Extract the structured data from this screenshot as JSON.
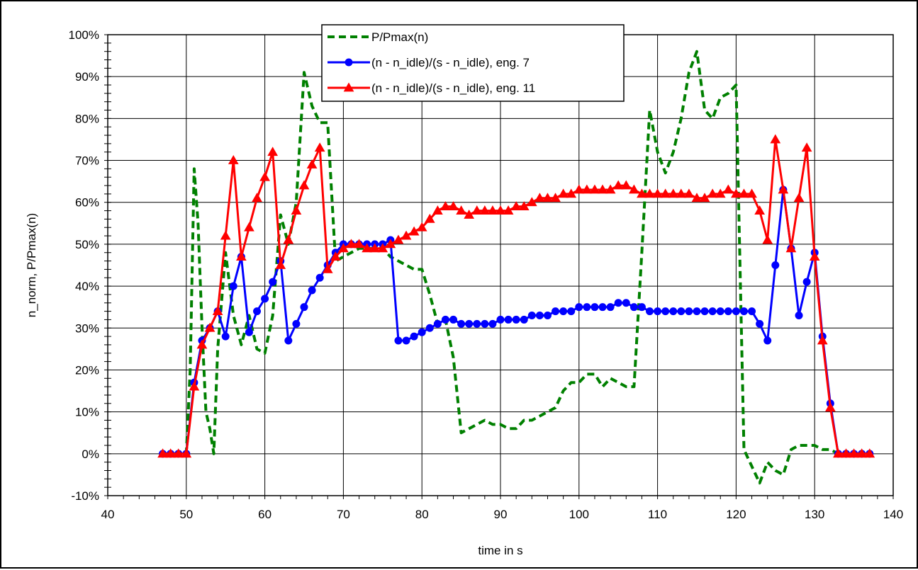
{
  "chart_data": {
    "type": "line",
    "title": "",
    "xlabel": "time in s",
    "ylabel": "n_norm, P/Pmax(n)",
    "xlim": [
      40,
      140
    ],
    "ylim": [
      -10,
      100
    ],
    "x_ticks": [
      40,
      50,
      60,
      70,
      80,
      90,
      100,
      110,
      120,
      130,
      140
    ],
    "x_tick_labels": [
      "40",
      "50",
      "60",
      "70",
      "80",
      "90",
      "100",
      "110",
      "120",
      "130",
      "140"
    ],
    "y_ticks": [
      -10,
      0,
      10,
      20,
      30,
      40,
      50,
      60,
      70,
      80,
      90,
      100
    ],
    "y_tick_labels": [
      "-10%",
      "0%",
      "10%",
      "20%",
      "30%",
      "40%",
      "50%",
      "60%",
      "70%",
      "80%",
      "90%",
      "100%"
    ],
    "grid": true,
    "legend_position": "top-center",
    "series": [
      {
        "name": "P/Pmax(n)",
        "color": "#008000",
        "style": "dashed",
        "marker": "none",
        "x": [
          47,
          48,
          49,
          50,
          50.5,
          51,
          51.5,
          52,
          52.5,
          53,
          53.5,
          54,
          55,
          56,
          57,
          58,
          59,
          60,
          61,
          62,
          63,
          64,
          65,
          66,
          67,
          68,
          69,
          70,
          71,
          72,
          73,
          74,
          75,
          76,
          77,
          78,
          79,
          80,
          81,
          82,
          83,
          84,
          85,
          86,
          87,
          88,
          89,
          90,
          91,
          92,
          93,
          94,
          95,
          96,
          97,
          98,
          99,
          100,
          101,
          102,
          103,
          104,
          105,
          106,
          107,
          108,
          109,
          110,
          111,
          112,
          113,
          114,
          115,
          116,
          117,
          118,
          119,
          120,
          121,
          122,
          123,
          124,
          125,
          126,
          127,
          128,
          129,
          130,
          131,
          132,
          133,
          134,
          135,
          136,
          137
        ],
        "y": [
          0,
          0,
          0,
          0,
          20,
          68,
          55,
          30,
          10,
          6,
          0,
          25,
          48,
          33,
          26,
          33,
          25,
          24,
          33,
          57,
          50,
          60,
          91,
          83,
          79,
          79,
          46,
          47,
          48,
          49,
          49,
          49,
          49,
          47,
          46,
          45,
          44,
          44,
          38,
          31,
          32,
          23,
          5,
          6,
          7,
          8,
          7,
          7,
          6,
          6,
          8,
          8,
          9,
          10,
          11,
          15,
          17,
          17,
          19,
          19,
          16,
          18,
          17,
          16,
          16,
          48,
          82,
          72,
          67,
          72,
          80,
          91,
          96,
          82,
          80,
          85,
          86,
          88,
          1,
          -3,
          -7,
          -2,
          -4,
          -5,
          1,
          2,
          2,
          2,
          1,
          1,
          0,
          0,
          0,
          0,
          0
        ]
      },
      {
        "name": "(n - n_idle)/(s - n_idle), eng. 7",
        "color": "#0000ff",
        "style": "solid",
        "marker": "circle",
        "x": [
          47,
          48,
          49,
          50,
          51,
          52,
          53,
          54,
          55,
          56,
          57,
          58,
          59,
          60,
          61,
          62,
          63,
          64,
          65,
          66,
          67,
          68,
          69,
          70,
          71,
          72,
          73,
          74,
          75,
          76,
          77,
          78,
          79,
          80,
          81,
          82,
          83,
          84,
          85,
          86,
          87,
          88,
          89,
          90,
          91,
          92,
          93,
          94,
          95,
          96,
          97,
          98,
          99,
          100,
          101,
          102,
          103,
          104,
          105,
          106,
          107,
          108,
          109,
          110,
          111,
          112,
          113,
          114,
          115,
          116,
          117,
          118,
          119,
          120,
          121,
          122,
          123,
          124,
          125,
          126,
          127,
          128,
          129,
          130,
          131,
          132,
          133,
          134,
          135,
          136,
          137
        ],
        "y": [
          0,
          0,
          0,
          0,
          17,
          27,
          30,
          34,
          28,
          40,
          47,
          29,
          34,
          37,
          41,
          46,
          27,
          31,
          35,
          39,
          42,
          45,
          48,
          50,
          50,
          50,
          50,
          50,
          50,
          51,
          27,
          27,
          28,
          29,
          30,
          31,
          32,
          32,
          31,
          31,
          31,
          31,
          31,
          32,
          32,
          32,
          32,
          33,
          33,
          33,
          34,
          34,
          34,
          35,
          35,
          35,
          35,
          35,
          36,
          36,
          35,
          35,
          34,
          34,
          34,
          34,
          34,
          34,
          34,
          34,
          34,
          34,
          34,
          34,
          34,
          34,
          31,
          27,
          45,
          63,
          49,
          33,
          41,
          48,
          28,
          12,
          0,
          0,
          0,
          0,
          0
        ]
      },
      {
        "name": "(n - n_idle)/(s - n_idle), eng. 11",
        "color": "#ff0000",
        "style": "solid",
        "marker": "triangle",
        "x": [
          47,
          48,
          49,
          50,
          51,
          52,
          53,
          54,
          55,
          56,
          57,
          58,
          59,
          60,
          61,
          62,
          63,
          64,
          65,
          66,
          67,
          68,
          69,
          70,
          71,
          72,
          73,
          74,
          75,
          76,
          77,
          78,
          79,
          80,
          81,
          82,
          83,
          84,
          85,
          86,
          87,
          88,
          89,
          90,
          91,
          92,
          93,
          94,
          95,
          96,
          97,
          98,
          99,
          100,
          101,
          102,
          103,
          104,
          105,
          106,
          107,
          108,
          109,
          110,
          111,
          112,
          113,
          114,
          115,
          116,
          117,
          118,
          119,
          120,
          121,
          122,
          123,
          124,
          125,
          126,
          127,
          128,
          129,
          130,
          131,
          132,
          133,
          134,
          135,
          136,
          137
        ],
        "y": [
          0,
          0,
          0,
          0,
          16,
          26,
          30,
          34,
          52,
          70,
          47,
          54,
          61,
          66,
          72,
          45,
          51,
          58,
          64,
          69,
          73,
          44,
          47,
          49,
          50,
          50,
          49,
          49,
          49,
          50,
          51,
          52,
          53,
          54,
          56,
          58,
          59,
          59,
          58,
          57,
          58,
          58,
          58,
          58,
          58,
          59,
          59,
          60,
          61,
          61,
          61,
          62,
          62,
          63,
          63,
          63,
          63,
          63,
          64,
          64,
          63,
          62,
          62,
          62,
          62,
          62,
          62,
          62,
          61,
          61,
          62,
          62,
          63,
          62,
          62,
          62,
          58,
          51,
          75,
          63,
          49,
          61,
          73,
          47,
          27,
          11,
          0,
          0,
          0,
          0,
          0
        ]
      }
    ]
  }
}
